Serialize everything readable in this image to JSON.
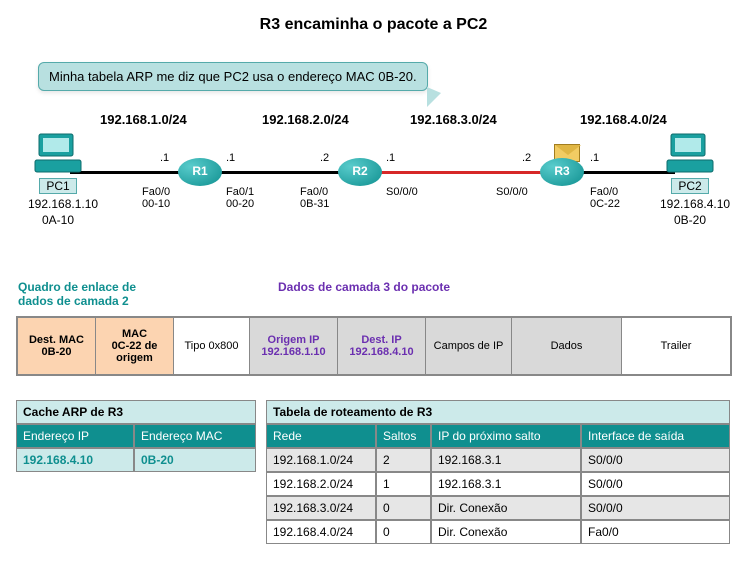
{
  "title": "R3 encaminha o pacote a PC2",
  "callout": "Minha tabela ARP me diz que PC2 usa o endereço MAC 0B-20.",
  "networks": [
    "192.168.1.0/24",
    "192.168.2.0/24",
    "192.168.3.0/24",
    "192.168.4.0/24"
  ],
  "pc1": {
    "name": "PC1",
    "ip": "192.168.1.10",
    "mac": "0A-10"
  },
  "pc2": {
    "name": "PC2",
    "ip": "192.168.4.10",
    "mac": "0B-20"
  },
  "routers": [
    "R1",
    "R2",
    "R3"
  ],
  "interfaces": {
    "r1_left_last": ".1",
    "r1_left_if": "Fa0/0",
    "r1_left_mac": "00-10",
    "r1_right_last": ".1",
    "r1_right_if": "Fa0/1",
    "r1_right_mac": "00-20",
    "r2_left_last": ".2",
    "r2_left_if": "Fa0/0",
    "r2_left_mac": "0B-31",
    "r2_right_last": ".1",
    "r2_right_if": "S0/0/0",
    "r3_left_last": ".2",
    "r3_left_if": "S0/0/0",
    "r3_right_last": ".1",
    "r3_right_if": "Fa0/0",
    "r3_right_mac": "0C-22"
  },
  "section_labels": {
    "l2": "Quadro de enlace de dados de camada 2",
    "l3": "Dados de camada 3 do pacote"
  },
  "frame": {
    "dest_mac_label": "Dest. MAC",
    "dest_mac": "0B-20",
    "src_mac_label": "MAC",
    "src_mac": "0C-22 de origem",
    "type": "Tipo 0x800",
    "src_ip_label": "Origem IP",
    "src_ip": "192.168.1.10",
    "dst_ip_label": "Dest. IP",
    "dst_ip": "192.168.4.10",
    "ip_fields": "Campos de IP",
    "data": "Dados",
    "trailer": "Trailer"
  },
  "arp_table": {
    "title": "Cache ARP de R3",
    "headers": [
      "Endereço IP",
      "Endereço MAC"
    ],
    "row": [
      "192.168.4.10",
      "0B-20"
    ]
  },
  "routing_table": {
    "title": "Tabela de roteamento de R3",
    "headers": [
      "Rede",
      "Saltos",
      "IP do próximo salto",
      "Interface de saída"
    ],
    "rows": [
      [
        "192.168.1.0/24",
        "2",
        "192.168.3.1",
        "S0/0/0"
      ],
      [
        "192.168.2.0/24",
        "1",
        "192.168.3.1",
        "S0/0/0"
      ],
      [
        "192.168.3.0/24",
        "0",
        "Dir. Conexão",
        "S0/0/0"
      ],
      [
        "192.168.4.0/24",
        "0",
        "Dir. Conexão",
        "Fa0/0"
      ]
    ]
  },
  "colors": {
    "teal": "#0f8f8f",
    "teal_light": "#cceaea",
    "orange": "#fcd4b1",
    "grey": "#d9d9d9",
    "purple": "#6b2fb0",
    "red": "#d62828"
  }
}
